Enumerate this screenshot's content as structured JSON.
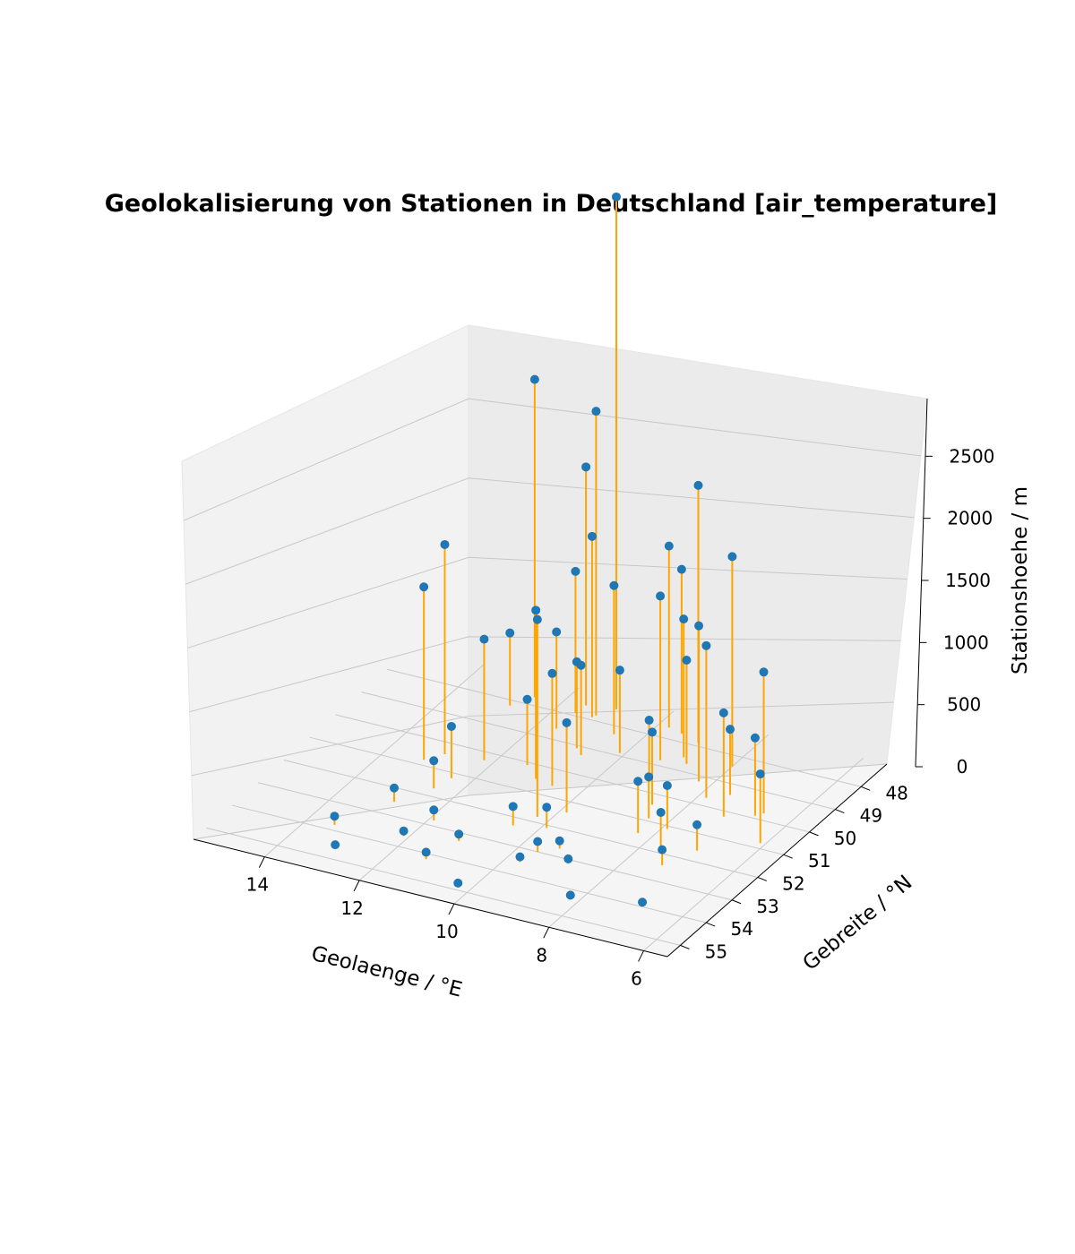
{
  "chart_data": {
    "type": "scatter",
    "subtype": "3d-stem",
    "title": "Geolokalisierung von Stationen in Deutschland [air_temperature]",
    "xlabel": "Geolaenge / °E",
    "ylabel": "Gebreite / °N",
    "zlabel": "Stationshoehe / m",
    "xlim": [
      5.5,
      15.5
    ],
    "ylim": [
      47,
      55.5
    ],
    "zlim": [
      0,
      2964
    ],
    "x_ticks": [
      "14",
      "12",
      "10",
      "8",
      "6"
    ],
    "y_ticks": [
      "48",
      "49",
      "50",
      "51",
      "52",
      "53",
      "54",
      "55"
    ],
    "z_ticks": [
      "0",
      "500",
      "1000",
      "1500",
      "2000",
      "2500"
    ],
    "grid": true,
    "marker_color": "#1f77b4",
    "stem_color": "#ffa500",
    "pane_color": "#f2f2f2",
    "series": [
      {
        "x": [
          10.98,
          11.2,
          12.55,
          9.0,
          11.55,
          6.6,
          8.0,
          11.23,
          12.96,
          9.3,
          7.84,
          11.0,
          10.26,
          13.2,
          11.58,
          8.27,
          10.55,
          9.45,
          9.77,
          8.97,
          10.6,
          9.86,
          12.2,
          10.1,
          7.2,
          6.1,
          8.3,
          12.9,
          13.45,
          11.3,
          9.7,
          10.5,
          7.6,
          8.9,
          11.9,
          12.4,
          8.6,
          7.0,
          9.1,
          10.9,
          11.6,
          12.8,
          7.5,
          8.4,
          9.9,
          11.1,
          13.0,
          6.9,
          8.2,
          10.3,
          12.1,
          9.3,
          7.9,
          11.4,
          6.7,
          8.8,
          10.7,
          12.5,
          9.6,
          7.3
        ],
        "y": [
          47.42,
          47.8,
          47.7,
          47.88,
          47.55,
          49.75,
          48.4,
          47.9,
          50.43,
          48.8,
          49.7,
          50.5,
          51.8,
          50.8,
          47.9,
          49.2,
          48.3,
          47.7,
          47.6,
          48.5,
          50.6,
          51.4,
          50.3,
          48.9,
          50.2,
          50.8,
          51.5,
          52.5,
          53.8,
          54.2,
          53.5,
          52.3,
          51.9,
          53.1,
          52.8,
          51.2,
          50.4,
          51.6,
          49.6,
          49.1,
          48.6,
          48.2,
          49.4,
          50.9,
          52.1,
          53.3,
          54.6,
          53.9,
          54.3,
          54.8,
          53.6,
          52.7,
          51.1,
          50.1,
          49.9,
          48.7,
          49.3,
          51.7,
          53.0,
          52.4
        ],
        "z": [
          2964,
          1759,
          1838,
          1490,
          1380,
          818,
          1214,
          1046,
          1213,
          950,
          880,
          975,
          1142,
          1000,
          820,
          900,
          860,
          950,
          1050,
          800,
          650,
          520,
          700,
          480,
          600,
          400,
          300,
          80,
          50,
          40,
          30,
          110,
          220,
          20,
          60,
          300,
          420,
          150,
          350,
          500,
          560,
          420,
          380,
          240,
          120,
          40,
          20,
          10,
          15,
          8,
          30,
          45,
          250,
          380,
          450,
          600,
          520,
          160,
          60,
          90
        ]
      }
    ]
  }
}
